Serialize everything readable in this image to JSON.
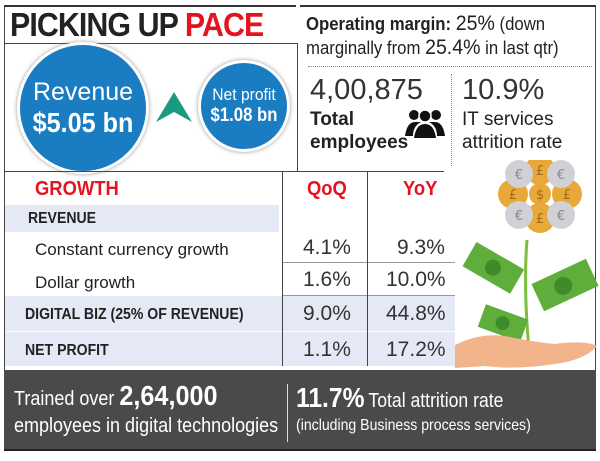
{
  "title": {
    "part1": "PICKING UP",
    "part2": "PACE"
  },
  "revenue": {
    "label": "Revenue",
    "value": "$5.05 bn"
  },
  "net_profit": {
    "label": "Net profit",
    "value": "$1.08 bn"
  },
  "trend_icon": "up-arrow-icon",
  "operating_margin": {
    "label": "Operating margin:",
    "value": "25%",
    "note1": "(down",
    "note2": "marginally from",
    "prev": "25.4%",
    "note3": "in last qtr)"
  },
  "employees": {
    "value": "4,00,875",
    "label1": "Total",
    "label2": "employees",
    "icon": "people-icon"
  },
  "it_attrition": {
    "value": "10.9%",
    "label1": "IT services",
    "label2": "attrition rate"
  },
  "table": {
    "header": {
      "label": "GROWTH",
      "qoq": "QoQ",
      "yoy": "YoY"
    },
    "section": "REVENUE",
    "rows": [
      {
        "label": "Constant currency growth",
        "qoq": "4.1%",
        "yoy": "9.3%"
      },
      {
        "label": "Dollar growth",
        "qoq": "1.6%",
        "yoy": "10.0%"
      },
      {
        "label": "DIGITAL BIZ (25% OF REVENUE)",
        "qoq": "9.0%",
        "yoy": "44.8%"
      },
      {
        "label": "NET PROFIT",
        "qoq": "1.1%",
        "yoy": "17.2%"
      }
    ]
  },
  "bottom": {
    "left": {
      "pre": "Trained over",
      "num": "2,64,000",
      "post": "employees in digital technologies"
    },
    "right": {
      "num": "11.7%",
      "text": "Total attrition rate",
      "sub": "(including Business process services)"
    }
  },
  "colors": {
    "accent_red": "#e3141f",
    "circle_blue": "#1a7cc1",
    "arrow_teal": "#1a9a80",
    "band": "#e4e9f5",
    "footer": "#4a4a4a"
  },
  "illustration": "money-plant-coins-hand-illustration"
}
